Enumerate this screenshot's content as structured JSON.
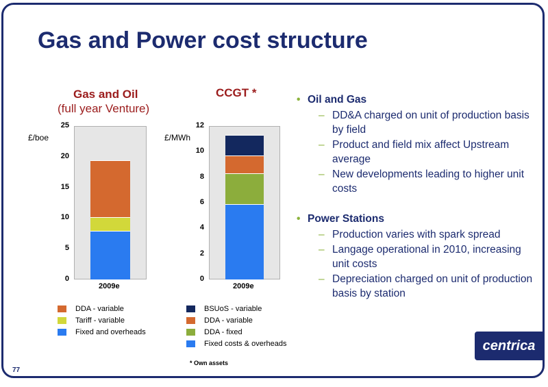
{
  "title": "Gas and Power cost structure",
  "page_number": "77",
  "footnote": "* Own assets",
  "logo_text": "centrica",
  "colors": {
    "dda_variable": "#d4692f",
    "tariff_variable": "#d2d83a",
    "fixed_overheads": "#2a7bf0",
    "bsuos_variable": "#13285e",
    "dda_fixed": "#8cad3c",
    "navy": "#1c2b6f",
    "bullet_green": "#8cb33c"
  },
  "chart_data": [
    {
      "type": "bar",
      "stacked": true,
      "title": "Gas and Oil",
      "subtitle": "(full year Venture)",
      "ylabel": "£/boe",
      "ylim": [
        0,
        25
      ],
      "yticks": [
        "0",
        "5",
        "10",
        "15",
        "20",
        "25"
      ],
      "categories": [
        "2009e"
      ],
      "series": [
        {
          "name": "Fixed and overheads",
          "values": [
            7.9
          ]
        },
        {
          "name": "Tariff - variable",
          "values": [
            2.3
          ]
        },
        {
          "name": "DDA - variable",
          "values": [
            9.2
          ]
        }
      ],
      "legend_order": [
        "DDA - variable",
        "Tariff - variable",
        "Fixed and overheads"
      ],
      "legend": "bottom"
    },
    {
      "type": "bar",
      "stacked": true,
      "title": "CCGT *",
      "ylabel": "£/MWh",
      "ylim": [
        0,
        12
      ],
      "yticks": [
        "0",
        "2",
        "4",
        "6",
        "8",
        "10",
        "12"
      ],
      "categories": [
        "2009e"
      ],
      "series": [
        {
          "name": "Fixed costs & overheads",
          "values": [
            5.9
          ]
        },
        {
          "name": "DDA - fixed",
          "values": [
            2.4
          ]
        },
        {
          "name": "DDA - variable",
          "values": [
            1.4
          ]
        },
        {
          "name": "BSUoS - variable",
          "values": [
            1.6
          ]
        }
      ],
      "legend_order": [
        "BSUoS - variable",
        "DDA - variable",
        "DDA - fixed",
        "Fixed costs & overheads"
      ],
      "legend": "bottom"
    }
  ],
  "bullets": [
    {
      "heading": "Oil and Gas",
      "items": [
        "DD&A charged on unit of production basis by field",
        "Product and field mix affect Upstream average",
        "New developments leading to higher unit costs"
      ]
    },
    {
      "heading": "Power Stations",
      "items": [
        "Production varies with spark spread",
        "Langage operational in 2010, increasing unit costs",
        "Depreciation charged on unit of production basis by station"
      ]
    }
  ]
}
